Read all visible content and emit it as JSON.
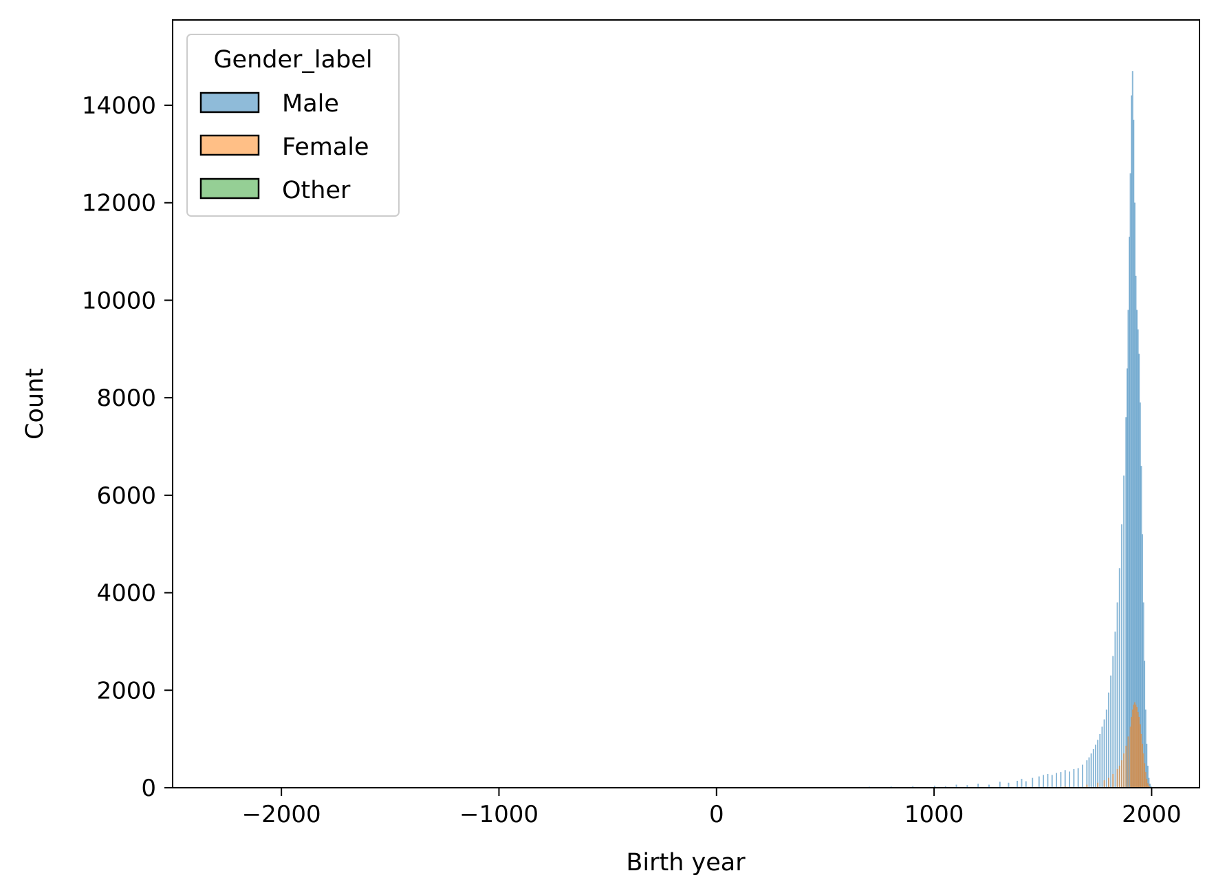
{
  "chart_data": {
    "type": "bar",
    "subtype": "histogram",
    "title": "",
    "xlabel": "Birth year",
    "ylabel": "Count",
    "xlim": [
      -2500,
      2220
    ],
    "ylim": [
      0,
      15750
    ],
    "xticks": [
      -2000,
      -1000,
      0,
      1000,
      2000
    ],
    "xtick_labels": [
      "−2000",
      "−1000",
      "0",
      "1000",
      "2000"
    ],
    "yticks": [
      0,
      2000,
      4000,
      6000,
      8000,
      10000,
      12000,
      14000
    ],
    "ytick_labels": [
      "0",
      "2000",
      "4000",
      "6000",
      "8000",
      "10000",
      "12000",
      "14000"
    ],
    "grid": false,
    "legend": {
      "title": "Gender_label",
      "placement": "top-left",
      "entries": [
        "Male",
        "Female",
        "Other"
      ]
    },
    "bin_width": 5,
    "series": [
      {
        "name": "Male",
        "color": "#1f77b4",
        "bins": [
          [
            200,
            15
          ],
          [
            250,
            10
          ],
          [
            300,
            10
          ],
          [
            400,
            10
          ],
          [
            500,
            15
          ],
          [
            600,
            15
          ],
          [
            700,
            20
          ],
          [
            800,
            25
          ],
          [
            900,
            30
          ],
          [
            1000,
            40
          ],
          [
            1050,
            30
          ],
          [
            1100,
            60
          ],
          [
            1150,
            50
          ],
          [
            1200,
            80
          ],
          [
            1250,
            60
          ],
          [
            1300,
            120
          ],
          [
            1340,
            100
          ],
          [
            1380,
            140
          ],
          [
            1400,
            180
          ],
          [
            1420,
            130
          ],
          [
            1450,
            200
          ],
          [
            1480,
            230
          ],
          [
            1500,
            260
          ],
          [
            1520,
            280
          ],
          [
            1540,
            260
          ],
          [
            1560,
            300
          ],
          [
            1580,
            320
          ],
          [
            1600,
            360
          ],
          [
            1620,
            330
          ],
          [
            1640,
            380
          ],
          [
            1660,
            400
          ],
          [
            1680,
            470
          ],
          [
            1700,
            560
          ],
          [
            1710,
            620
          ],
          [
            1720,
            700
          ],
          [
            1730,
            790
          ],
          [
            1740,
            880
          ],
          [
            1750,
            980
          ],
          [
            1760,
            1100
          ],
          [
            1770,
            1250
          ],
          [
            1780,
            1400
          ],
          [
            1790,
            1600
          ],
          [
            1800,
            1950
          ],
          [
            1810,
            2300
          ],
          [
            1820,
            2700
          ],
          [
            1830,
            3200
          ],
          [
            1840,
            3800
          ],
          [
            1850,
            4500
          ],
          [
            1860,
            5400
          ],
          [
            1870,
            6400
          ],
          [
            1880,
            7600
          ],
          [
            1885,
            8600
          ],
          [
            1890,
            9800
          ],
          [
            1895,
            11300
          ],
          [
            1900,
            12600
          ],
          [
            1905,
            14200
          ],
          [
            1910,
            14700
          ],
          [
            1915,
            13700
          ],
          [
            1920,
            12000
          ],
          [
            1925,
            10500
          ],
          [
            1930,
            9800
          ],
          [
            1935,
            9400
          ],
          [
            1940,
            8900
          ],
          [
            1945,
            7900
          ],
          [
            1950,
            6600
          ],
          [
            1955,
            5200
          ],
          [
            1960,
            3800
          ],
          [
            1965,
            2600
          ],
          [
            1970,
            1600
          ],
          [
            1975,
            900
          ],
          [
            1980,
            450
          ],
          [
            1985,
            200
          ],
          [
            1990,
            80
          ],
          [
            1995,
            30
          ]
        ]
      },
      {
        "name": "Female",
        "color": "#ff7f0e",
        "bins": [
          [
            1600,
            30
          ],
          [
            1700,
            60
          ],
          [
            1750,
            100
          ],
          [
            1780,
            150
          ],
          [
            1800,
            200
          ],
          [
            1820,
            280
          ],
          [
            1840,
            380
          ],
          [
            1850,
            450
          ],
          [
            1860,
            560
          ],
          [
            1870,
            700
          ],
          [
            1880,
            860
          ],
          [
            1890,
            1050
          ],
          [
            1900,
            1250
          ],
          [
            1905,
            1450
          ],
          [
            1910,
            1600
          ],
          [
            1915,
            1700
          ],
          [
            1920,
            1750
          ],
          [
            1925,
            1700
          ],
          [
            1930,
            1650
          ],
          [
            1935,
            1550
          ],
          [
            1940,
            1450
          ],
          [
            1945,
            1300
          ],
          [
            1950,
            1100
          ],
          [
            1955,
            900
          ],
          [
            1960,
            700
          ],
          [
            1965,
            500
          ],
          [
            1970,
            320
          ],
          [
            1975,
            180
          ],
          [
            1980,
            90
          ],
          [
            1985,
            40
          ],
          [
            1990,
            15
          ]
        ]
      },
      {
        "name": "Other",
        "color": "#2ca02c",
        "bins": [
          [
            1900,
            2
          ],
          [
            1930,
            3
          ],
          [
            1950,
            4
          ],
          [
            1960,
            5
          ],
          [
            1970,
            5
          ],
          [
            1980,
            3
          ]
        ]
      }
    ]
  }
}
